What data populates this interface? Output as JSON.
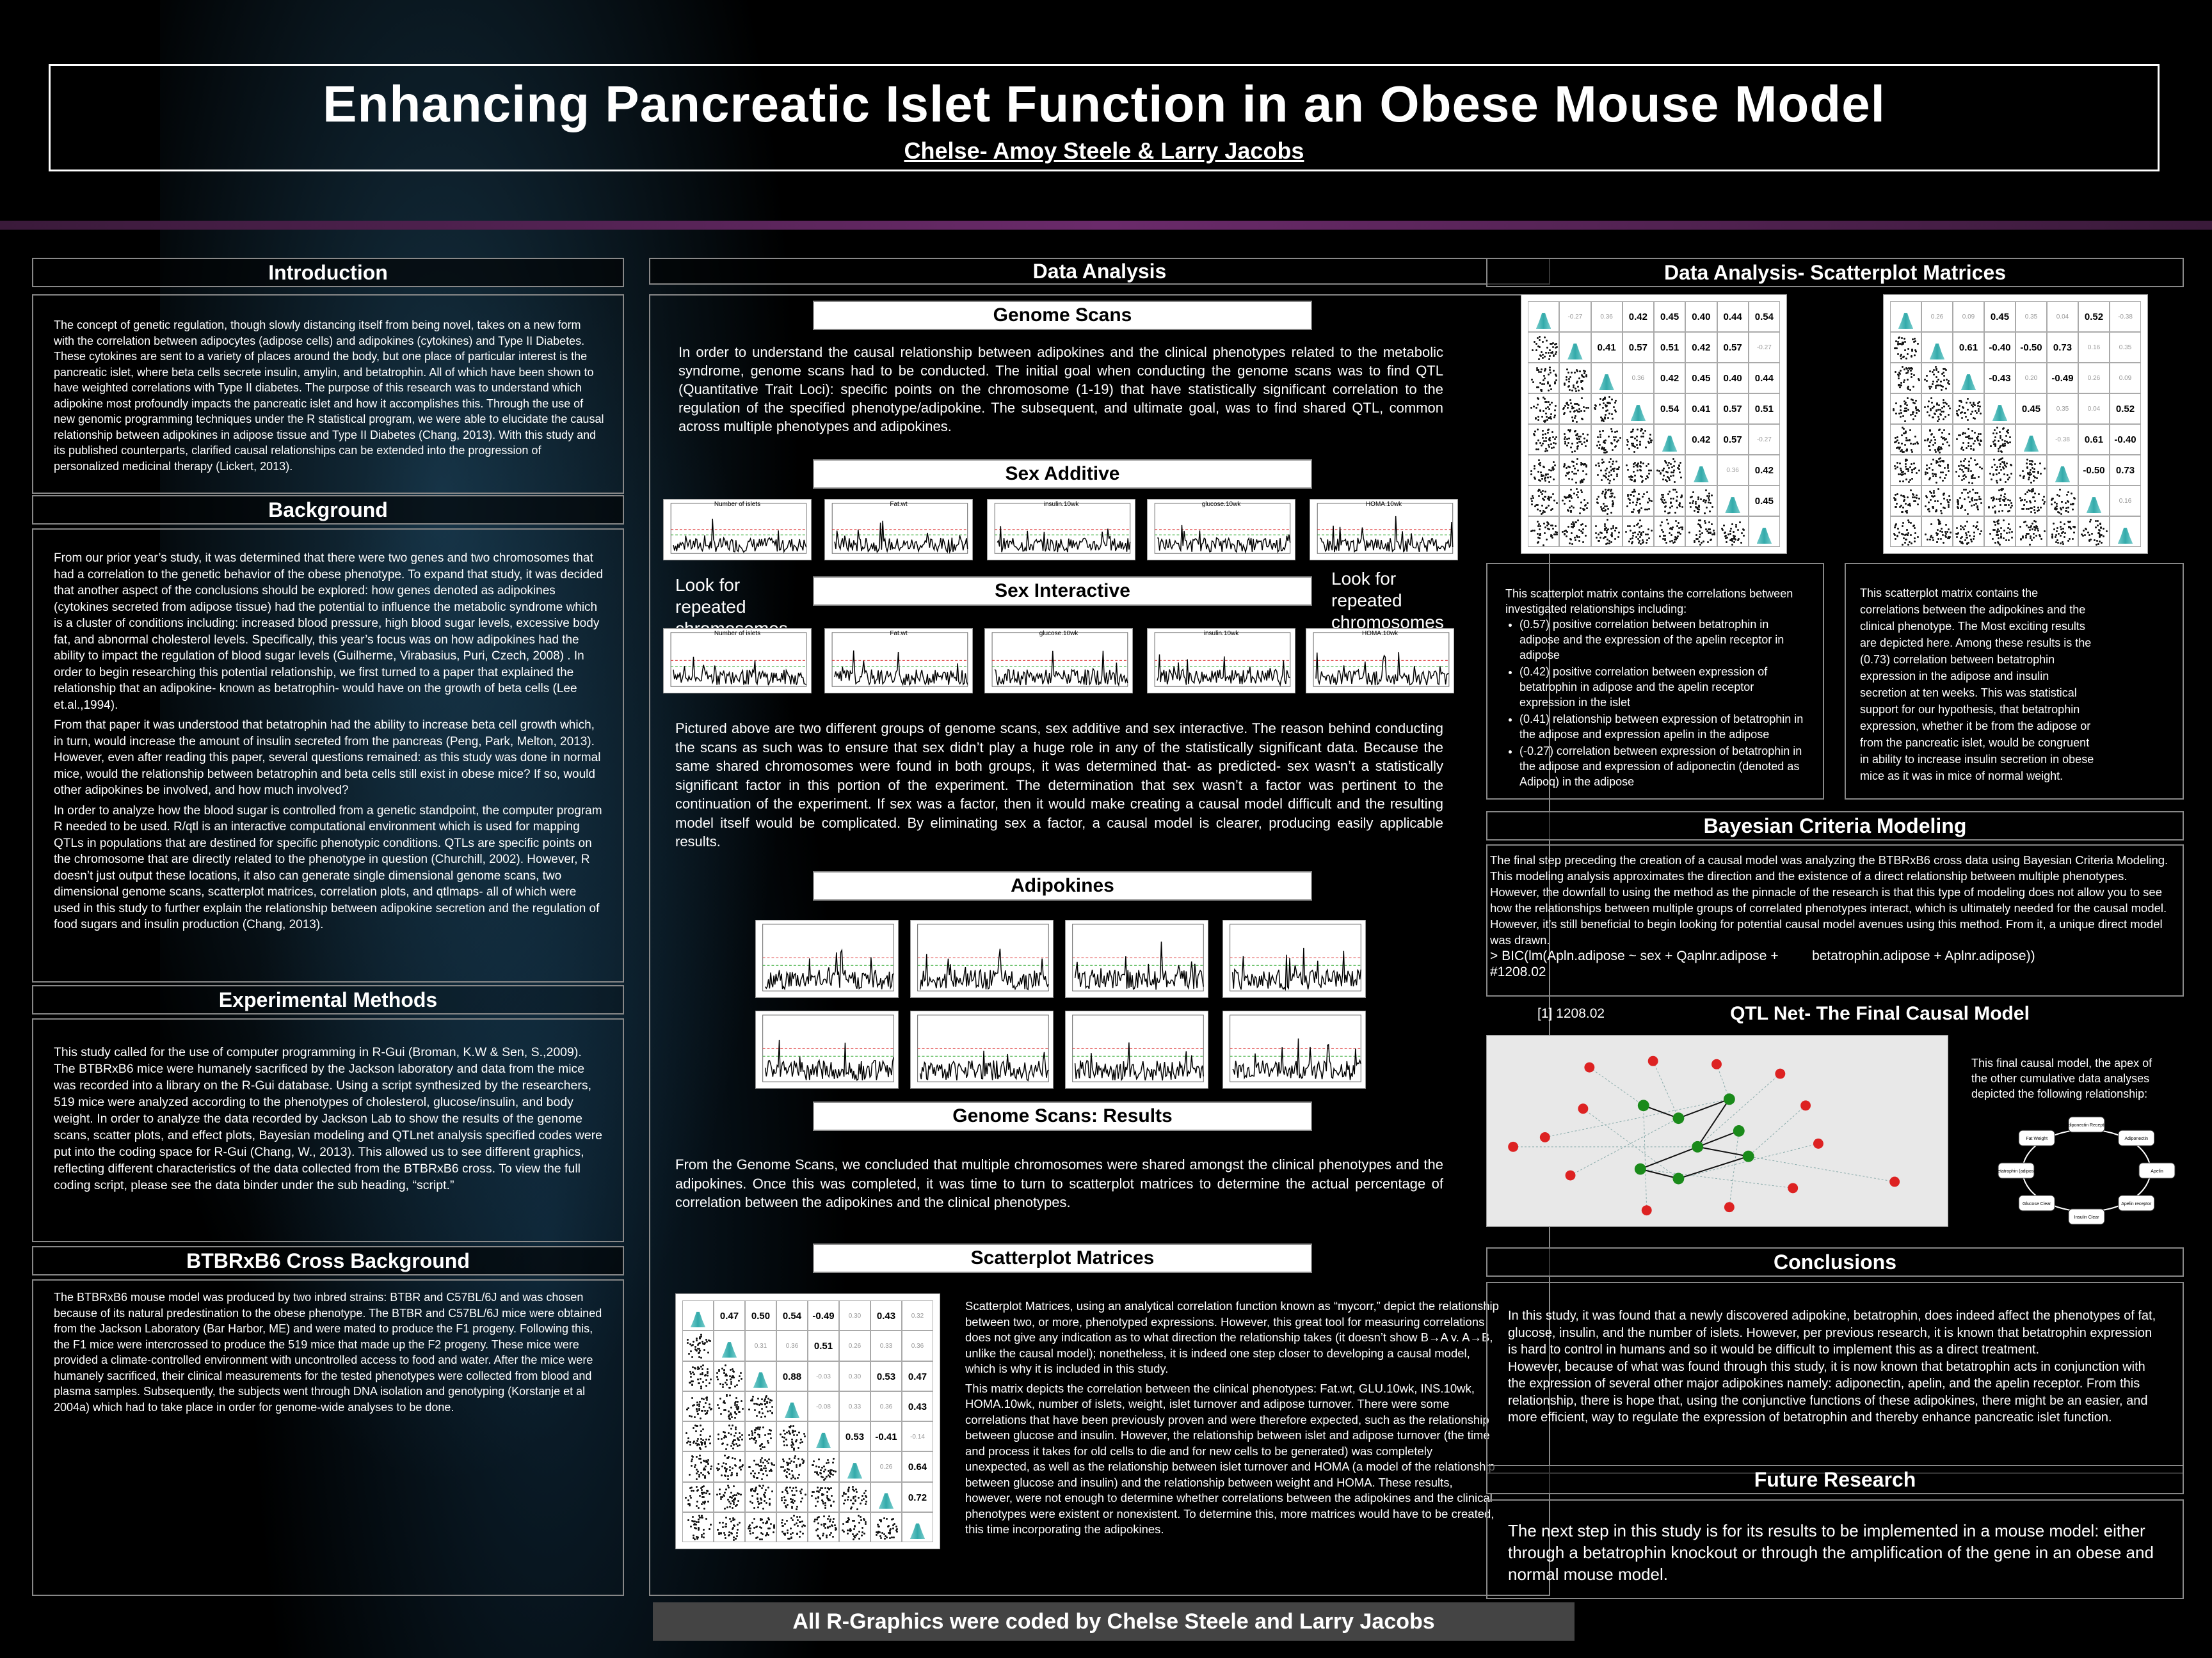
{
  "header": {
    "title": "Enhancing Pancreatic Islet Function in an Obese Mouse Model",
    "authors": "Chelse- Amoy Steele & Larry Jacobs"
  },
  "introduction": {
    "heading": "Introduction",
    "text": "The concept of genetic regulation, though slowly distancing itself from being novel, takes on a new form with the correlation between adipocytes (adipose cells) and adipokines (cytokines) and Type II Diabetes. These cytokines are sent to a variety of places around the body, but one place of particular interest is the pancreatic islet, where beta cells secrete insulin, amylin, and betatrophin. All of which have been shown to have weighted correlations with Type II diabetes. The purpose of this research was to understand which adipokine most profoundly impacts the pancreatic islet and how it accomplishes this. Through the use of new genomic programming techniques under the R statistical program, we were able to elucidate the causal relationship between adipokines in adipose tissue and Type II Diabetes (Chang, 2013). With this study and its published counterparts, clarified causal relationships can be extended into the progression of personalized medicinal therapy (Lickert, 2013)."
  },
  "background": {
    "heading": "Background",
    "p1": "From our prior year’s study, it was determined that there were two genes and two chromosomes that had a correlation to the genetic behavior of the obese phenotype. To expand that study, it was decided that another aspect of the conclusions should be explored: how genes denoted as adipokines (cytokines secreted from adipose tissue) had the potential to influence the metabolic syndrome which is a cluster of conditions including: increased blood pressure, high blood sugar levels, excessive body fat, and abnormal cholesterol levels. Specifically, this year’s focus was on how adipokines had the ability to impact the regulation of blood sugar levels (Guilherme, Virabasius, Puri, Czech, 2008) . In order to begin researching this potential relationship, we first turned to a paper that explained the relationship that an adipokine- known as betatrophin- would have on the growth of beta cells (Lee et.al.,1994).",
    "p2": "From that paper it was understood that betatrophin had the ability to increase beta cell growth which, in turn, would increase the amount of insulin secreted from the pancreas (Peng, Park, Melton, 2013). However, even after reading this paper, several questions remained: as this study was done in normal mice, would the relationship between betatrophin and beta cells still exist in obese mice? If so, would other adipokines be involved, and how much involved?",
    "p3": "In order to analyze how the blood sugar is controlled from a genetic standpoint, the computer program R needed to be used. R/qtl is an interactive computational environment which is used for mapping QTLs in populations that are destined for specific phenotypic conditions. QTLs are specific points on the chromosome that are directly related to the phenotype in question (Churchill, 2002). However, R doesn’t just output these locations, it also can generate single dimensional genome scans, two dimensional genome scans, scatterplot matrices, correlation plots, and qtlmaps- all of which were used in this study to further explain the relationship between adipokine secretion and the regulation of food sugars and insulin production (Chang, 2013)."
  },
  "methods": {
    "heading": "Experimental Methods",
    "text": "This study called for the use of computer programming in R-Gui (Broman, K.W & Sen, S.,2009). The BTBRxB6 mice were humanely sacrificed by the Jackson laboratory and data from the mice was recorded into a library on the R-Gui database. Using a script synthesized by the researchers, 519 mice were analyzed according to the phenotypes of cholesterol, glucose/insulin, and body weight. In order to analyze the data recorded by Jackson Lab to show the results of the genome scans, scatter plots, and effect plots, Bayesian modeling and QTLnet analysis specified codes were put into the coding space for R-Gui (Chang, W., 2013). This allowed us to see different graphics, reflecting different characteristics of the data collected from the BTBRxB6 cross. To view the full coding script, please see the data binder under the sub heading, “script.”"
  },
  "cross": {
    "heading": "BTBRxB6 Cross Background",
    "text": "The BTBRxB6 mouse model was produced by two inbred strains: BTBR and C57BL/6J and was chosen because of its natural predestination to the obese phenotype. The BTBR and C57BL/6J mice were obtained from the Jackson Laboratory (Bar Harbor, ME) and were mated to produce the F1 progeny. Following this, the F1 mice were intercrossed to produce the 519 mice that made up the F2 progeny. These mice were provided a climate-controlled environment with uncontrolled access to food and water. After the mice were humanely sacrificed, their clinical measurements for the tested phenotypes were collected from blood and plasma samples. Subsequently, the subjects went through DNA isolation and genotyping (Korstanje et al 2004a) which had to take place in order for genome-wide analyses to be done."
  },
  "data_analysis": {
    "heading": "Data Analysis",
    "genome_scans_heading": "Genome Scans",
    "genome_scans_text": "In order to understand the causal relationship between adipokines and the clinical phenotypes related to the metabolic syndrome, genome scans had to be conducted. The initial goal when conducting the genome scans was to find QTL (Quantitative Trait Loci): specific points on the chromosome (1-19) that have statistically significant correlation to the regulation of the specified phenotype/adipokine. The subsequent, and ultimate goal, was to find shared QTL, common across multiple phenotypes and adipokines.",
    "sex_additive_heading": "Sex Additive",
    "sex_interactive_heading": "Sex Interactive",
    "look_left": "Look for repeated chromosomes",
    "look_right": "Look for repeated chromosomes",
    "sex_additive_plots": [
      "Number of islets",
      "Fat.wt",
      "insulin.10wk",
      "glucose.10wk",
      "HOMA.10wk"
    ],
    "sex_interactive_plots": [
      "Number of islets",
      "Fat.wt",
      "glucose.10wk",
      "insulin.10wk",
      "HOMA.10wk"
    ],
    "pictured_text": "Pictured above are two different groups of genome scans, sex additive and sex interactive. The reason behind conducting the scans as such was to ensure that sex didn’t play a huge role in any of the statistically significant data. Because the same shared chromosomes were found in both groups, it was determined that- as predicted- sex wasn’t a statistically significant factor in this portion of the experiment. The determination that sex wasn’t a factor was pertinent to the continuation of the experiment. If sex was a factor, then it would make creating a causal model difficult and the resulting model itself would be complicated. By eliminating sex a factor, a causal model is clearer, producing easily applicable results.",
    "adipokines_heading": "Adipokines",
    "results_heading": "Genome Scans: Results",
    "results_text": "From the Genome Scans, we concluded that multiple chromosomes were shared amongst the clinical phenotypes and the adipokines. Once this was completed, it was time to turn to scatterplot matrices to determine the actual percentage of correlation between the adipokines and the clinical phenotypes.",
    "scatter_heading": "Scatterplot Matrices",
    "scatter_p1": "Scatterplot Matrices, using an analytical correlation function known as “mycorr,” depict the relationship between two, or more, phenotyped expressions. However, this great tool for measuring correlations does not give any indication as to what direction the relationship takes (it doesn’t show B→A v. A→B, unlike the causal model); nonetheless, it is indeed one step closer to developing a causal model, which is why it is included in this study.",
    "scatter_p2": "This matrix depicts the correlation between the clinical phenotypes: Fat.wt, GLU.10wk, INS.10wk, HOMA.10wk, number of islets, weight, islet turnover and adipose turnover. There were some correlations that have been previously proven and were therefore expected, such as the relationship between glucose and insulin. However, the relationship between islet and adipose turnover (the time and process it takes for old cells to die and for new cells to be generated) was completely unexpected, as well as the relationship between islet turnover and HOMA (a model of the relationship between glucose and insulin) and the relationship between weight and HOMA. These results, however, were not enough to determine whether correlations between the adipokines and the clinical phenotypes were existent or nonexistent. To determine this, more matrices would have to be created, this time incorporating the adipokines."
  },
  "right": {
    "scatter_heading": "Data Analysis- Scatterplot Matrices",
    "left_matrix_title": "This scatterplot matrix contains the correlations between investigated relationships including:",
    "left_bullets": [
      "(0.57) positive correlation between betatrophin in adipose and the expression of the apelin receptor in adipose",
      "(0.42) positive correlation between expression of betatrophin in adipose and the apelin receptor expression in the islet",
      "(0.41) relationship between expression of betatrophin in the adipose and expression apelin in the adipose",
      "(-0.27) correlation between expression of betatrophin in the adipose and expression of adiponectin (denoted as Adipoq) in the adipose"
    ],
    "right_matrix_text": "This scatterplot matrix contains the correlations between the adipokines and the clinical phenotype. The Most exciting results are depicted here. Among these results is the (0.73) correlation between betatrophin expression in the adipose and insulin secretion at ten weeks. This was statistical support for our hypothesis, that betatrophin expression, whether it be from the adipose or from the pancreatic islet, would be congruent in ability to increase insulin secretion in obese mice as it was in mice of normal weight.",
    "bayes_heading": "Bayesian Criteria Modeling",
    "bayes_text": "The final step preceding the creation of a causal model was analyzing the BTBRxB6 cross data using Bayesian Criteria Modeling. This modeling analysis approximates the direction and the existence of a direct relationship between multiple phenotypes. However, the downfall to using the method as the pinnacle of the research is that this type of modeling does not allow you to see how the relationships between multiple groups of correlated phenotypes interact, which is ultimately needed for the causal model. However, it’s still beneficial to begin looking for potential causal model avenues using this method. From it, a unique direct model was drawn.",
    "bayes_code1": "> BIC(lm(Apln.adipose ~ sex + Qaplnr.adipose +         betatrophin.adipose + Aplnr.adipose))",
    "bayes_code2": "#1208.02",
    "bayes_code3": "[1] 1208.02",
    "qtlnet_heading": "QTL Net-  The Final Causal Model",
    "qtlnet_text": "This final causal model, the apex of the other cumulative data analyses depicted the following relationship:",
    "cycle_nodes": [
      "Adiponectin Receptor",
      "Adiponectin",
      "Apelin",
      "Apelin receptor",
      "Insulin Clear",
      "Glucose Clear",
      "Betatrophin (adipose)",
      "Fat Weight"
    ],
    "conclusions_heading": "Conclusions",
    "conclusions_p1": "In this study, it was found that a newly discovered adipokine, betatrophin, does indeed affect the phenotypes of fat, glucose, insulin, and the number of islets. However, per previous research, it is known that betatrophin expression is hard to control in humans and so it would be difficult to implement this as a direct treatment.",
    "conclusions_p2": "However, because of what was found through this study, it is now known that betatrophin acts in conjunction with the expression of several other major adipokines namely: adiponectin, apelin, and the apelin receptor. From this relationship, there is hope that, using the conjunctive functions of these adipokines, there might be an easier, and more efficient, way to regulate the expression of betatrophin and thereby enhance pancreatic islet function.",
    "future_heading": "Future Research",
    "future_text": "The next step in this study is for its results to be implemented in a mouse model: either through a betatrophin knockout or through the amplification of the gene in an obese and normal mouse model."
  },
  "footer": "All R-Graphics were coded by Chelse Steele and Larry Jacobs",
  "matrices": {
    "center_values": [
      "0.47",
      "0.50",
      "0.54",
      "-0.49",
      "0.30",
      "0.43",
      "0.32",
      "0.31",
      "0.36",
      "0.51",
      "0.26",
      "0.33",
      "0.36",
      "0.88",
      "-0.03",
      "0.30",
      "0.53",
      "0.47",
      "-0.08",
      "0.33",
      "0.36",
      "0.43",
      "0.53",
      "-0.41",
      "-0.14",
      "0.26",
      "0.64",
      "0.72"
    ],
    "right1_values": [
      "-0.27",
      "0.36",
      "0.42",
      "0.45",
      "0.40",
      "0.44",
      "0.54",
      "0.41",
      "0.57",
      "0.51",
      "0.42",
      "0.57"
    ],
    "right2_values": [
      "0.26",
      "0.09",
      "0.45",
      "0.35",
      "0.04",
      "0.52",
      "-0.38",
      "0.61",
      "-0.40",
      "-0.50",
      "0.73",
      "0.16",
      "0.35",
      "-0.43",
      "0.20",
      "-0.49"
    ]
  }
}
